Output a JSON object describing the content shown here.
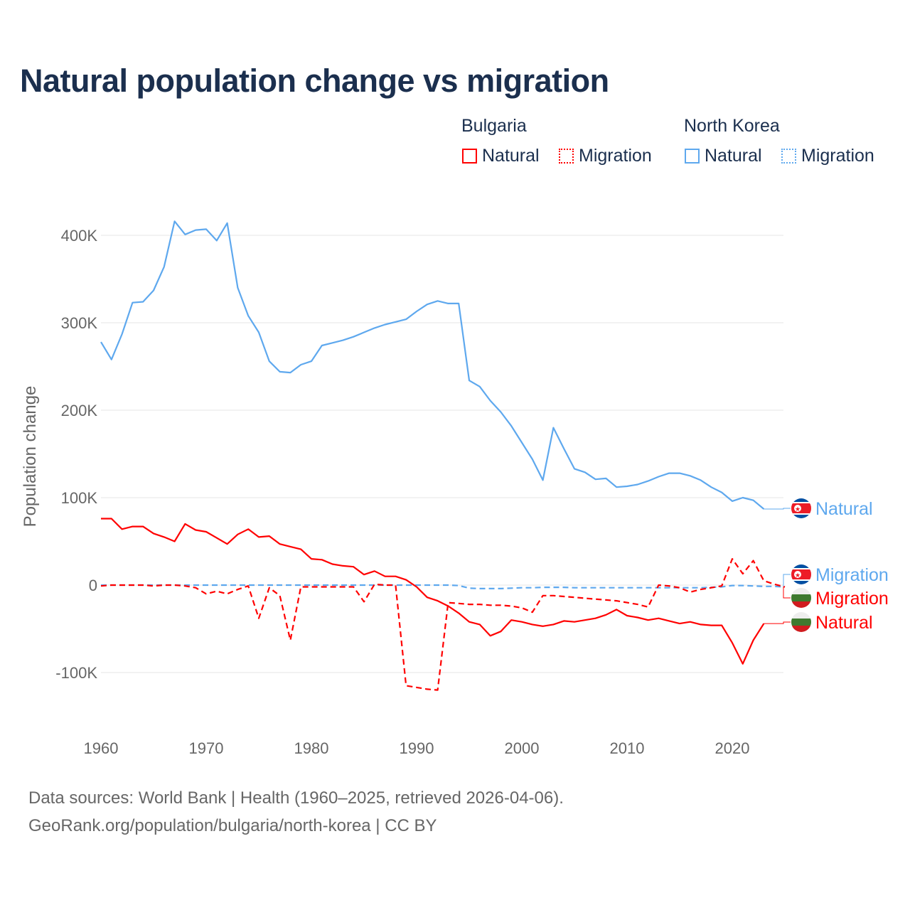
{
  "title": "Natural population change vs migration",
  "legend": {
    "groups": [
      {
        "name": "Bulgaria",
        "color": "#ff0000",
        "items": [
          "Natural",
          "Migration"
        ]
      },
      {
        "name": "North Korea",
        "color": "#5ea8ee",
        "items": [
          "Natural",
          "Migration"
        ]
      }
    ]
  },
  "source": {
    "line1": "Data sources: World Bank | Health (1960–2025, retrieved 2026-04-06).",
    "line2": "GeoRank.org/population/bulgaria/north-korea | CC BY"
  },
  "chart_data": {
    "type": "line",
    "title": "Natural population change vs migration",
    "xlabel": "",
    "ylabel": "Population change",
    "xlim": [
      1960,
      2025
    ],
    "ylim": [
      -150000,
      420000
    ],
    "yticks": [
      -100000,
      0,
      100000,
      200000,
      300000,
      400000
    ],
    "ytick_labels": [
      "-100K",
      "0",
      "100K",
      "200K",
      "300K",
      "400K"
    ],
    "xticks": [
      1960,
      1970,
      1980,
      1990,
      2000,
      2010,
      2020
    ],
    "grid": true,
    "series": [
      {
        "name": "North Korea Natural",
        "label": "Natural",
        "country": "North Korea",
        "color": "#5ea8ee",
        "dash": false,
        "start": 1960,
        "values": [
          278000,
          258000,
          287000,
          323000,
          324000,
          337000,
          364000,
          416000,
          401000,
          406000,
          407000,
          394000,
          414000,
          340000,
          308000,
          289000,
          256000,
          244000,
          243000,
          252000,
          256000,
          274000,
          277000,
          280000,
          284000,
          289000,
          294000,
          298000,
          301000,
          304000,
          313000,
          321000,
          325000,
          322000,
          322000,
          234000,
          227000,
          211000,
          198000,
          182000,
          163000,
          144000,
          120000,
          180000,
          156000,
          133000,
          129000,
          121000,
          122000,
          112000,
          113000,
          115000,
          119000,
          124000,
          128000,
          128000,
          125000,
          120000,
          112000,
          106000,
          96000,
          100000,
          97000,
          87000
        ]
      },
      {
        "name": "North Korea Migration",
        "label": "Migration",
        "country": "North Korea",
        "color": "#5ea8ee",
        "dash": true,
        "start": 1960,
        "values": [
          0,
          0,
          0,
          0,
          0,
          0,
          0,
          0,
          0,
          0,
          0,
          0,
          0,
          0,
          0,
          0,
          0,
          0,
          0,
          0,
          0,
          0,
          0,
          0,
          0,
          0,
          0,
          0,
          0,
          0,
          0,
          0,
          0,
          0,
          -500,
          -3500,
          -4000,
          -4000,
          -4000,
          -3500,
          -3000,
          -3000,
          -2500,
          -2500,
          -2500,
          -3000,
          -3000,
          -3000,
          -3000,
          -3000,
          -3000,
          -3000,
          -3000,
          -3000,
          -3000,
          -3000,
          -3000,
          -3000,
          -2500,
          -2000,
          -500,
          -500,
          -1000,
          -1500,
          -1500,
          -2000
        ]
      },
      {
        "name": "Bulgaria Natural",
        "label": "Natural",
        "country": "Bulgaria",
        "color": "#ff0000",
        "dash": false,
        "start": 1960,
        "values": [
          76000,
          76000,
          64000,
          67000,
          67000,
          59000,
          55000,
          50000,
          70000,
          63000,
          61000,
          54000,
          47000,
          58000,
          64000,
          55000,
          56000,
          47000,
          44000,
          41000,
          30000,
          29000,
          24000,
          22000,
          21000,
          12000,
          16000,
          10000,
          10000,
          6000,
          -2000,
          -14000,
          -18000,
          -24000,
          -32000,
          -42000,
          -45000,
          -58000,
          -53000,
          -40000,
          -42000,
          -45000,
          -47000,
          -45000,
          -41000,
          -42000,
          -40000,
          -38000,
          -34000,
          -28000,
          -35000,
          -37000,
          -40000,
          -38000,
          -41000,
          -44000,
          -42000,
          -45000,
          -46000,
          -46000,
          -66000,
          -90000,
          -63000,
          -44000
        ]
      },
      {
        "name": "Bulgaria Migration",
        "label": "Migration",
        "country": "Bulgaria",
        "color": "#ff0000",
        "dash": true,
        "start": 1960,
        "values": [
          -1000,
          0,
          0,
          0,
          0,
          -1000,
          0,
          0,
          -1000,
          -3000,
          -10000,
          -7000,
          -10000,
          -5000,
          -1000,
          -38000,
          -3000,
          -12000,
          -63000,
          -2000,
          -2000,
          -2000,
          -2000,
          -2000,
          -2000,
          -19000,
          1000,
          0,
          0,
          -115000,
          -117000,
          -119000,
          -120000,
          -20000,
          -21000,
          -22000,
          -22000,
          -23000,
          -23000,
          -24000,
          -26000,
          -31000,
          -12000,
          -12000,
          -13000,
          -14000,
          -15000,
          -16000,
          -17000,
          -18000,
          -20000,
          -22000,
          -25000,
          0,
          -1000,
          -3000,
          -8000,
          -5000,
          -3000,
          -1000,
          30000,
          13000,
          28000,
          5000,
          1000,
          -2000
        ]
      }
    ]
  }
}
